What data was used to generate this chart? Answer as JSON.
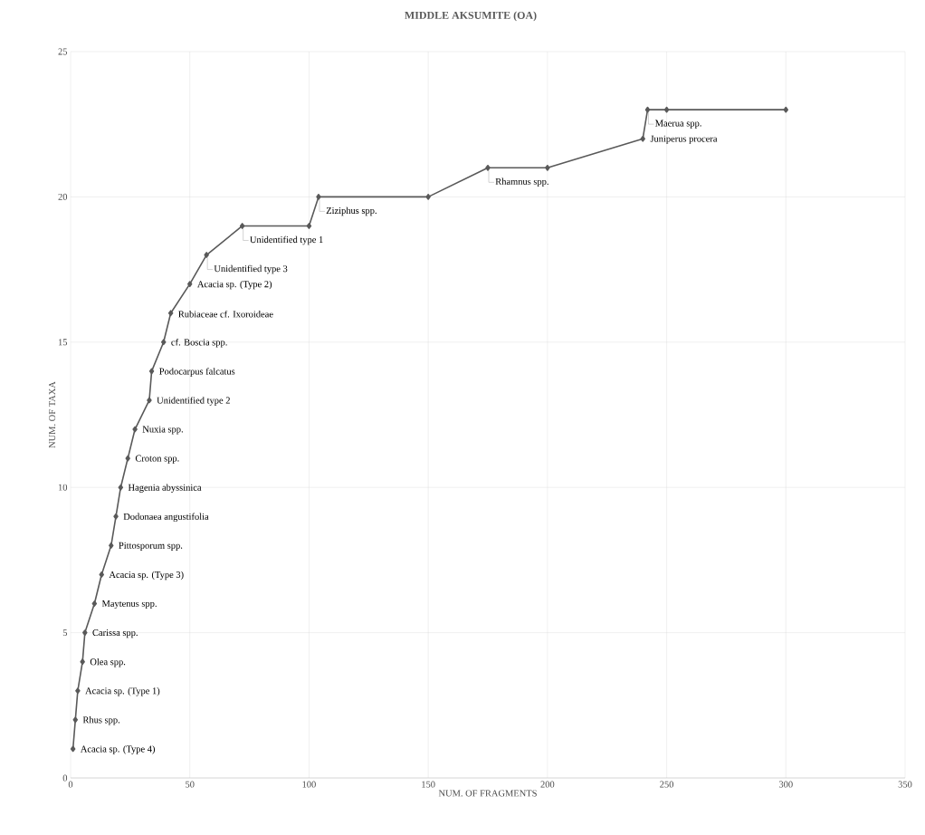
{
  "chart_data": {
    "type": "line",
    "title": "MIDDLE AKSUMITE (OA)",
    "xlabel": "NUM. OF FRAGMENTS",
    "ylabel": "NUM. OF TAXA",
    "x": [
      1,
      2,
      3,
      5,
      6,
      10,
      13,
      17,
      19,
      21,
      24,
      27,
      33,
      34,
      39,
      42,
      50,
      57,
      72,
      100,
      104,
      150,
      175,
      200,
      240,
      242,
      250,
      300
    ],
    "series": [
      {
        "color": "#595959",
        "values": [
          1,
          2,
          3,
          4,
          5,
          6,
          7,
          8,
          9,
          10,
          11,
          12,
          13,
          14,
          15,
          16,
          17,
          18,
          19,
          19,
          20,
          20,
          21,
          21,
          22,
          23,
          23,
          23
        ]
      }
    ],
    "xlim": [
      0,
      350
    ],
    "xticks": [
      0,
      50,
      100,
      150,
      200,
      250,
      300,
      350
    ],
    "ylim": [
      0,
      25
    ],
    "yticks": [
      0,
      5,
      10,
      15,
      20,
      25
    ],
    "grid": true,
    "marker": "diamond",
    "line_style": "solid",
    "annotations": [
      {
        "text": "Acacia sp. (Type 4)",
        "x": 1,
        "y": 1
      },
      {
        "text": "Rhus spp.",
        "x": 2,
        "y": 2
      },
      {
        "text": "Acacia sp. (Type 1)",
        "x": 3,
        "y": 3
      },
      {
        "text": "Olea spp.",
        "x": 5,
        "y": 4
      },
      {
        "text": "Carissa spp.",
        "x": 6,
        "y": 5
      },
      {
        "text": "Maytenus spp.",
        "x": 10,
        "y": 6
      },
      {
        "text": "Acacia sp. (Type 3)",
        "x": 13,
        "y": 7
      },
      {
        "text": "Pittosporum spp.",
        "x": 17,
        "y": 8
      },
      {
        "text": "Dodonaea angustifolia",
        "x": 19,
        "y": 9
      },
      {
        "text": "Hagenia abyssinica",
        "x": 21,
        "y": 10
      },
      {
        "text": "Croton spp.",
        "x": 24,
        "y": 11
      },
      {
        "text": "Nuxia spp.",
        "x": 27,
        "y": 12
      },
      {
        "text": "Unidentified type 2",
        "x": 33,
        "y": 13
      },
      {
        "text": "Podocarpus falcatus",
        "x": 34,
        "y": 14
      },
      {
        "text": "cf. Boscia spp.",
        "x": 39,
        "y": 15
      },
      {
        "text": "Rubiaceae cf. Ixoroideae",
        "x": 42,
        "y": 16
      },
      {
        "text": "Acacia sp. (Type 2)",
        "x": 50,
        "y": 17
      },
      {
        "text": "Unidentified type 3",
        "x": 57,
        "y": 18
      },
      {
        "text": "Unidentified type 1",
        "x": 72,
        "y": 19
      },
      {
        "text": "Ziziphus spp.",
        "x": 104,
        "y": 20
      },
      {
        "text": "Rhamnus spp.",
        "x": 175,
        "y": 21
      },
      {
        "text": "Juniperus procera",
        "x": 240,
        "y": 22
      },
      {
        "text": "Maerua spp.",
        "x": 242,
        "y": 23
      }
    ]
  }
}
